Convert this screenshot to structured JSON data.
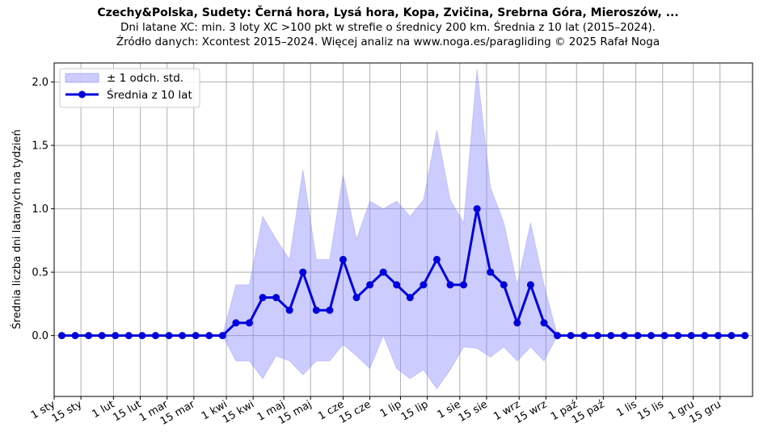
{
  "chart_data": {
    "type": "line",
    "title": "Czechy&Polska, Sudety: Černá hora, Lysá hora, Kopa, Zvičina, Srebrna Góra, Mieroszów, ...",
    "subtitle_lines": [
      "Dni latane XC: min. 3 loty XC >100 pkt w strefie o średnicy 200 km. Średnia z 10 lat (2015–2024).",
      "Źródło danych: Xcontest 2015–2024. Więcej analiz na www.noga.es/paragliding © 2025 Rafał Noga"
    ],
    "xlabel": "",
    "ylabel": "Średnia liczba dni latanych na tydzień",
    "ylim": [
      -0.48,
      2.15
    ],
    "y_ticks": [
      0.0,
      0.5,
      1.0,
      1.5,
      2.0
    ],
    "y_tick_labels": [
      "0.0",
      "0.5",
      "1.0",
      "1.5",
      "2.0"
    ],
    "x_range": [
      0,
      365
    ],
    "x_tick_positions": [
      0,
      14,
      31,
      45,
      59,
      73,
      90,
      104,
      120,
      134,
      151,
      165,
      181,
      195,
      212,
      226,
      243,
      257,
      273,
      287,
      304,
      318,
      334,
      348
    ],
    "x_tick_labels": [
      "1 sty",
      "15 sty",
      "1 lut",
      "15 lut",
      "1 mar",
      "15 mar",
      "1 kwi",
      "15 kwi",
      "1 maj",
      "15 maj",
      "1 cze",
      "15 cze",
      "1 lip",
      "15 lip",
      "1 sie",
      "15 sie",
      "1 wrz",
      "15 wrz",
      "1 paź",
      "15 paź",
      "1 lis",
      "15 lis",
      "1 gru",
      "15 gru"
    ],
    "grid": true,
    "legend_position": "top-left",
    "x": [
      4,
      11,
      18,
      25,
      32,
      39,
      46,
      53,
      60,
      67,
      74,
      81,
      88,
      95,
      102,
      109,
      116,
      123,
      130,
      137,
      144,
      151,
      158,
      165,
      172,
      179,
      186,
      193,
      200,
      207,
      214,
      221,
      228,
      235,
      242,
      249,
      256,
      263,
      270,
      277,
      284,
      291,
      298,
      305,
      312,
      319,
      326,
      333,
      340,
      347,
      354,
      361
    ],
    "series": [
      {
        "name": "Średnia z 10 lat",
        "color": "#0000dd",
        "values": [
          0,
          0,
          0,
          0,
          0,
          0,
          0,
          0,
          0,
          0,
          0,
          0,
          0,
          0.1,
          0.1,
          0.3,
          0.3,
          0.2,
          0.5,
          0.2,
          0.2,
          0.6,
          0.3,
          0.4,
          0.5,
          0.4,
          0.3,
          0.4,
          0.6,
          0.4,
          0.4,
          1.0,
          0.5,
          0.4,
          0.1,
          0.4,
          0.1,
          0,
          0,
          0,
          0,
          0,
          0,
          0,
          0,
          0,
          0,
          0,
          0,
          0,
          0,
          0
        ]
      },
      {
        "name": "± 1 odch. std.",
        "color": "#8080ff",
        "type": "band",
        "upper": [
          0,
          0,
          0,
          0,
          0,
          0,
          0,
          0,
          0,
          0,
          0,
          0,
          0,
          0.4,
          0.4,
          0.94,
          0.76,
          0.6,
          1.31,
          0.6,
          0.6,
          1.27,
          0.76,
          1.06,
          1.0,
          1.06,
          0.94,
          1.07,
          1.62,
          1.07,
          0.89,
          2.1,
          1.17,
          0.89,
          0.4,
          0.89,
          0.4,
          0,
          0,
          0,
          0,
          0,
          0,
          0,
          0,
          0,
          0,
          0,
          0,
          0,
          0,
          0
        ],
        "lower": [
          0,
          0,
          0,
          0,
          0,
          0,
          0,
          0,
          0,
          0,
          0,
          0,
          0,
          -0.2,
          -0.2,
          -0.34,
          -0.16,
          -0.2,
          -0.31,
          -0.2,
          -0.2,
          -0.07,
          -0.16,
          -0.26,
          0.0,
          -0.26,
          -0.34,
          -0.27,
          -0.42,
          -0.27,
          -0.09,
          -0.1,
          -0.17,
          -0.09,
          -0.2,
          -0.09,
          -0.2,
          0,
          0,
          0,
          0,
          0,
          0,
          0,
          0,
          0,
          0,
          0,
          0,
          0,
          0,
          0
        ]
      }
    ]
  }
}
